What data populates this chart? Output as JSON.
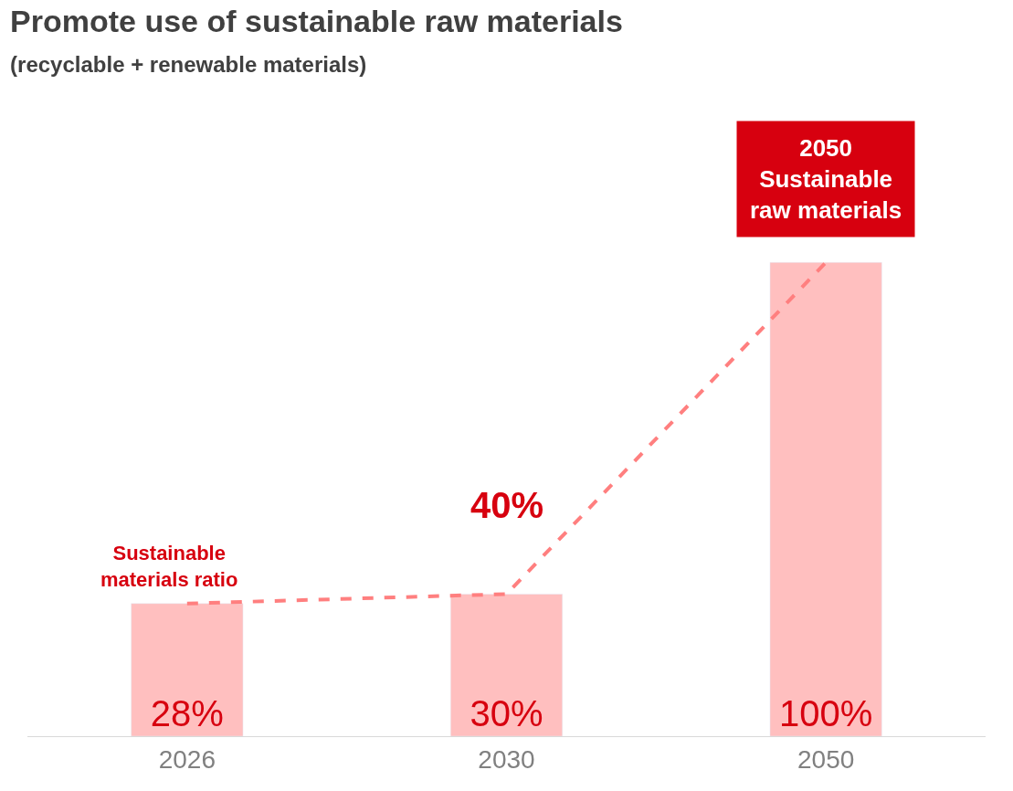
{
  "chart_data": {
    "type": "bar",
    "title": "Promote use of sustainable raw materials",
    "subtitle": "(recyclable + renewable materials)",
    "categories": [
      "2026",
      "2030",
      "2050"
    ],
    "series": [
      {
        "color": "#ffbfbf",
        "values": [
          28,
          30,
          100
        ],
        "value_labels": [
          "28%",
          "30%",
          "100%"
        ]
      },
      {
        "type": "line",
        "name": "Sustainable materials ratio",
        "color": "#ff7f7f",
        "line_style": "dashed",
        "values": [
          28,
          30,
          100
        ]
      }
    ],
    "annotations": [
      "40%",
      "2050\nSustainable\nraw materials"
    ],
    "tick_labels": "x",
    "legend": false,
    "marker": "none"
  }
}
